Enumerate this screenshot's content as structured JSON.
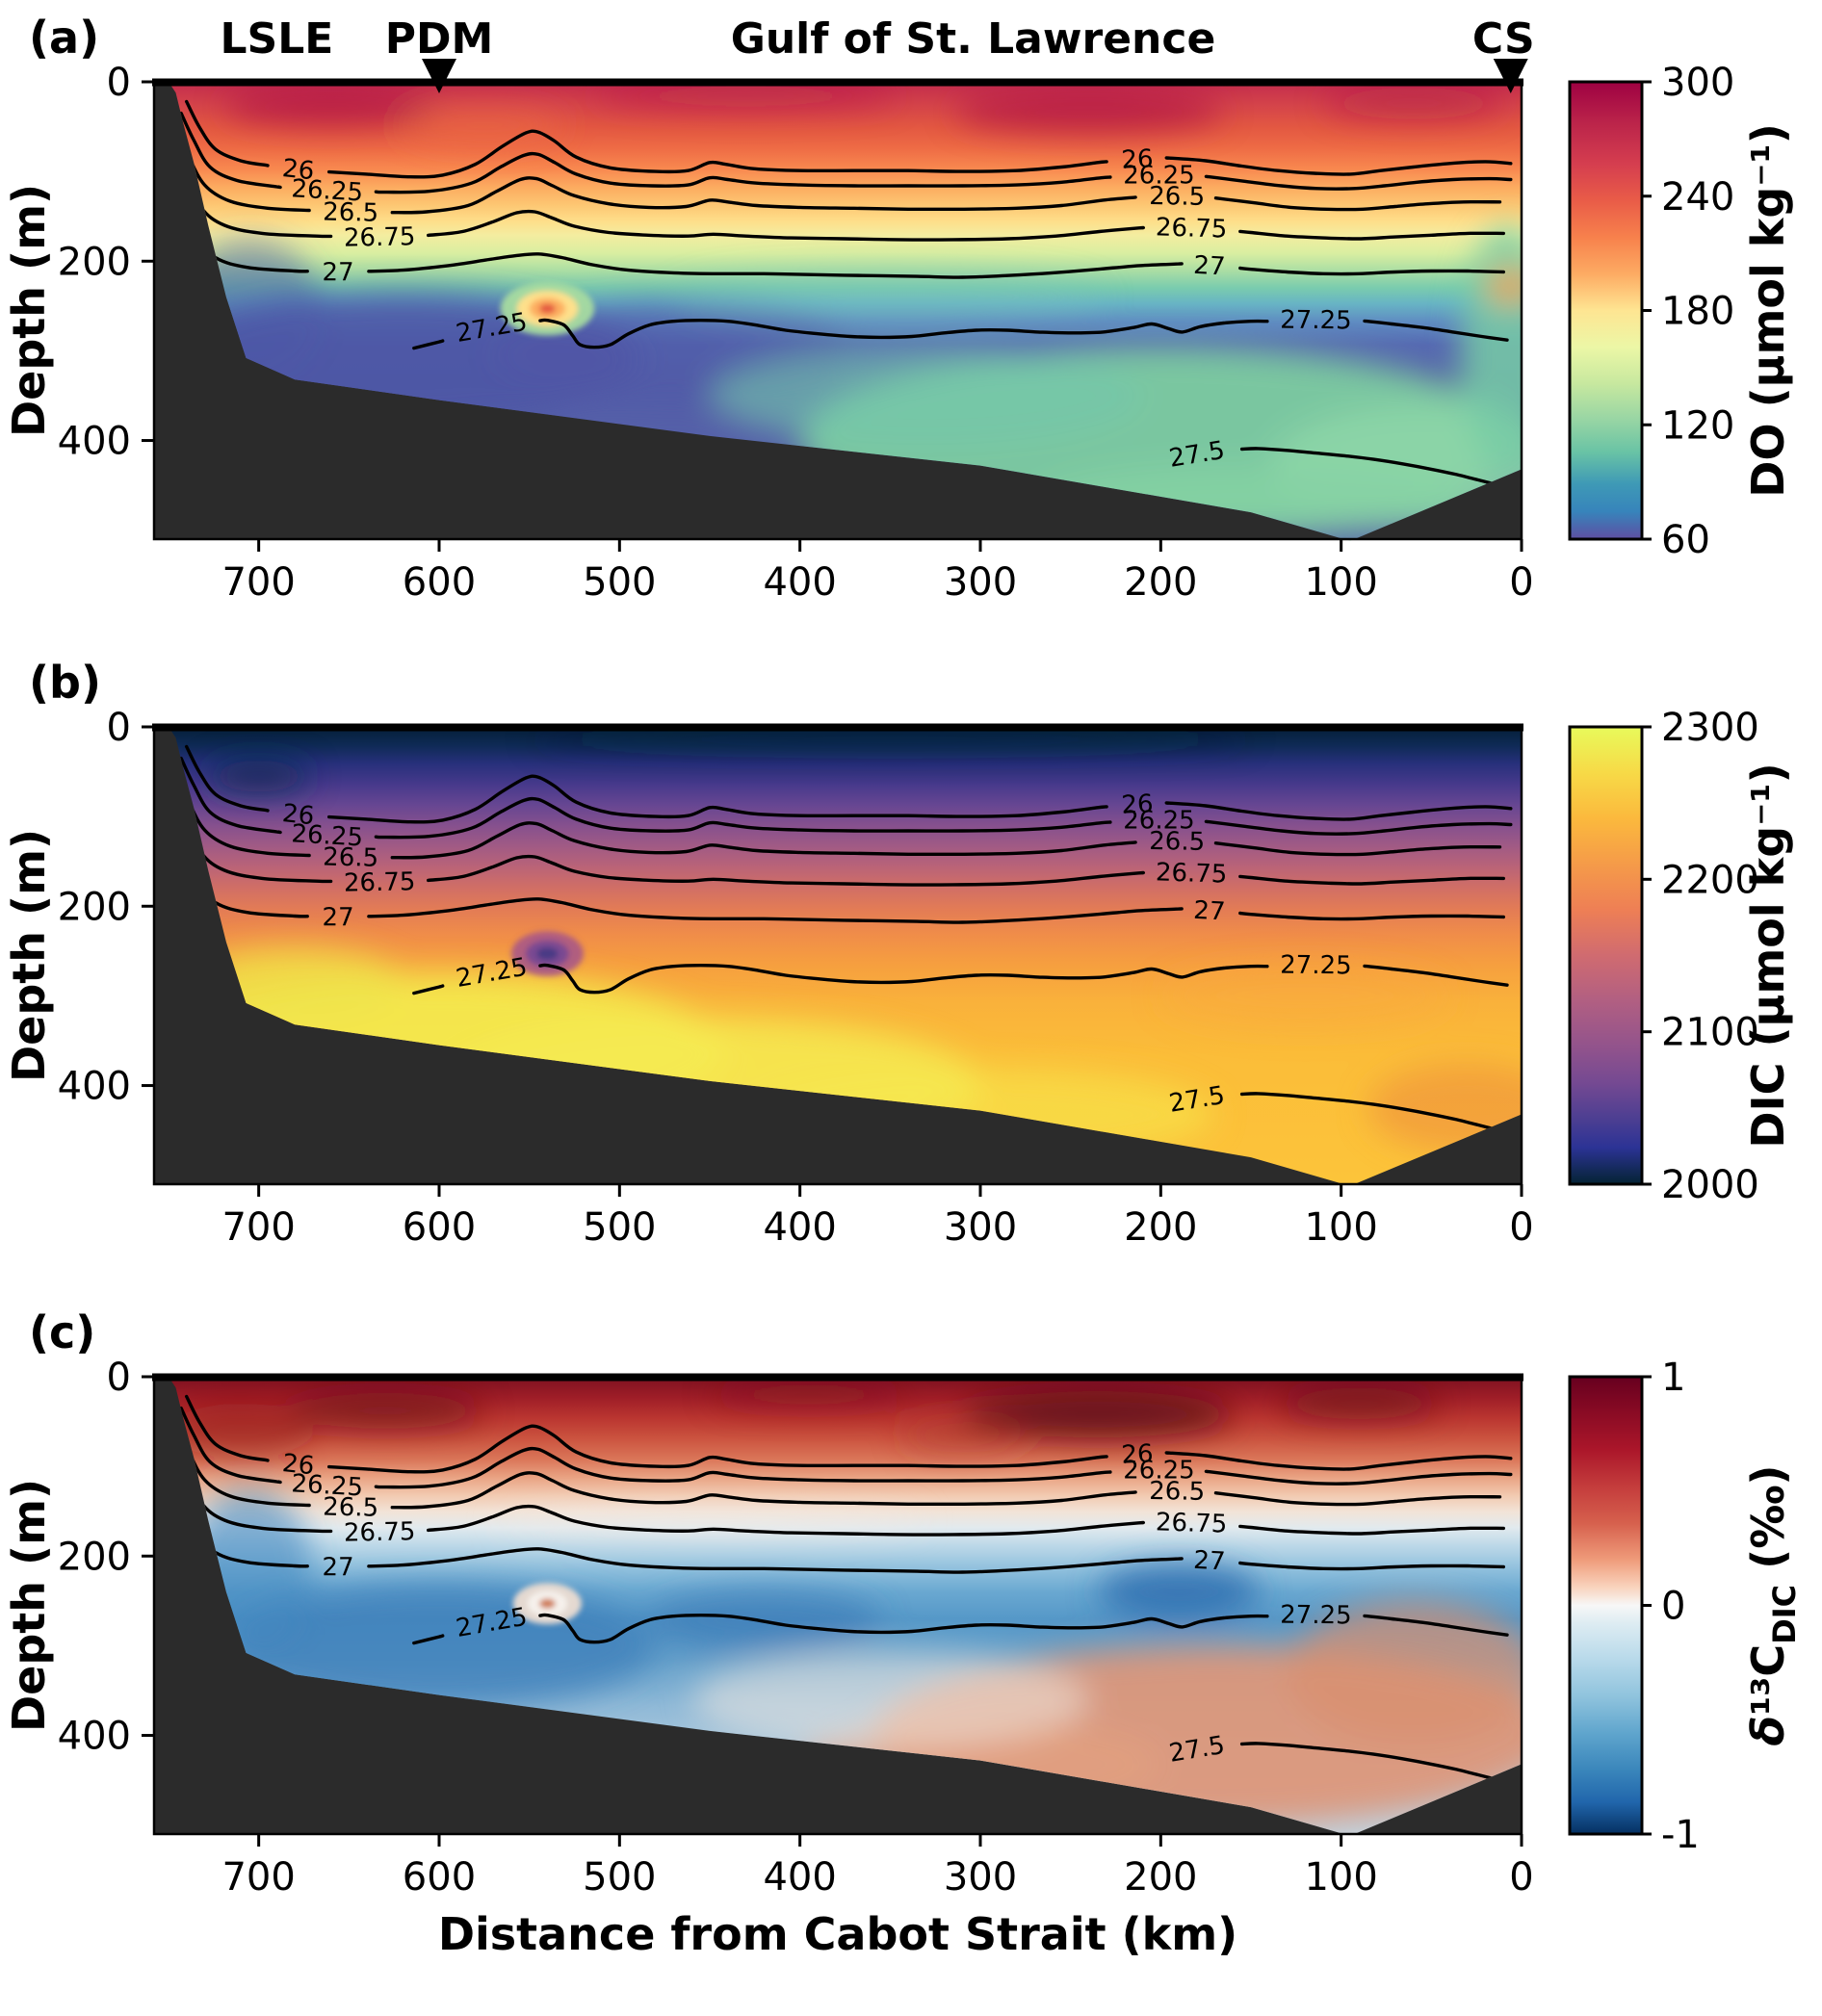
{
  "figure": {
    "panel_letters": [
      "(a)",
      "(b)",
      "(c)"
    ],
    "ylabel": "Depth (m)",
    "xlabel": "Distance from Cabot Strait (km)",
    "x_tick_labels": [
      "700",
      "600",
      "500",
      "400",
      "300",
      "200",
      "100",
      "0"
    ],
    "y_tick_labels": [
      "0",
      "200",
      "400"
    ],
    "contour_labels": [
      "26",
      "26.25",
      "26.5",
      "26.75",
      "27",
      "27.25",
      "27.5"
    ],
    "annotations": {
      "lsle": "LSLE",
      "pdm": "PDM",
      "gulf": "Gulf of St. Lawrence",
      "cs": "CS"
    },
    "colorbars": [
      {
        "ticks": [
          "300",
          "240",
          "180",
          "120",
          "60"
        ],
        "label": {
          "italic": "",
          "pre": "DO (µmol kg⁻¹)",
          "sub": "",
          "post": ""
        }
      },
      {
        "ticks": [
          "2300",
          "2200",
          "2100",
          "2000"
        ],
        "label": {
          "italic": "",
          "pre": "DIC (µmol kg⁻¹)",
          "sub": "",
          "post": ""
        }
      },
      {
        "ticks": [
          "1",
          "0",
          "-1"
        ],
        "label": {
          "italic": "δ",
          "pre": "¹³C",
          "sub": "DIC",
          "post": " (‰)"
        }
      }
    ]
  },
  "chart_data": [
    {
      "type": "heatmap",
      "panel": "a",
      "variable": "Dissolved oxygen (DO)",
      "units": "µmol kg⁻¹",
      "colormap_range": [
        60,
        300
      ],
      "colorbar_ticks": [
        300,
        240,
        180,
        120,
        60
      ],
      "x_axis": {
        "label": "Distance from Cabot Strait (km)",
        "ticks": [
          700,
          600,
          500,
          400,
          300,
          200,
          100,
          0
        ],
        "max_km": 758,
        "note": "distance decreases toward Cabot Strait at right"
      },
      "y_axis": {
        "label": "Depth (m)",
        "ticks": [
          0,
          200,
          400
        ],
        "max_depth_m": 510,
        "positive": "down"
      },
      "markers": [
        {
          "name": "LSLE",
          "km": 690
        },
        {
          "name": "PDM",
          "km": 600
        },
        {
          "name": "CS",
          "km": 6
        }
      ],
      "isopycnal_contour_levels": [
        26,
        26.25,
        26.5,
        26.75,
        27,
        27.25,
        27.5
      ],
      "isopycnal_mid_gulf_depths_m": {
        "26": 100,
        "26.25": 115,
        "26.5": 140,
        "26.75": 175,
        "27": 213,
        "27.25": 277,
        "27.5": 420
      },
      "seafloor_depth_m_vs_km": [
        [
          750,
          0
        ],
        [
          707,
          308
        ],
        [
          600,
          355
        ],
        [
          450,
          395
        ],
        [
          300,
          428
        ],
        [
          150,
          480
        ],
        [
          95,
          510
        ],
        [
          0,
          432
        ]
      ],
      "approx_profile_mid_gulf": {
        "depth_m": [
          0,
          50,
          100,
          150,
          200,
          250,
          300,
          350,
          400,
          450
        ],
        "value": [
          285,
          255,
          200,
          165,
          120,
          80,
          70,
          90,
          110,
          120
        ]
      },
      "features": [
        "surface layer DO ≈ 250–300",
        "oxygen-poor layer ≈ 60–90 at 250–350 m, most intense toward LSLE",
        "high-DO eddy core near 540 km at ≈ 250 m",
        "deep water near Cabot Strait ≈ 110–130"
      ]
    },
    {
      "type": "heatmap",
      "panel": "b",
      "variable": "Dissolved inorganic carbon (DIC)",
      "units": "µmol kg⁻¹",
      "colormap_range": [
        2000,
        2300
      ],
      "colorbar_ticks": [
        2300,
        2200,
        2100,
        2000
      ],
      "x_axis": {
        "label": "Distance from Cabot Strait (km)",
        "ticks": [
          700,
          600,
          500,
          400,
          300,
          200,
          100,
          0
        ],
        "max_km": 758,
        "note": "distance decreases toward Cabot Strait at right"
      },
      "y_axis": {
        "label": "Depth (m)",
        "ticks": [
          0,
          200,
          400
        ],
        "max_depth_m": 510,
        "positive": "down"
      },
      "markers": [
        {
          "name": "LSLE",
          "km": 690
        },
        {
          "name": "PDM",
          "km": 600
        },
        {
          "name": "CS",
          "km": 6
        }
      ],
      "isopycnal_contour_levels": [
        26,
        26.25,
        26.5,
        26.75,
        27,
        27.25,
        27.5
      ],
      "seafloor_depth_m_vs_km": [
        [
          750,
          0
        ],
        [
          707,
          308
        ],
        [
          600,
          355
        ],
        [
          450,
          395
        ],
        [
          300,
          428
        ],
        [
          150,
          480
        ],
        [
          95,
          510
        ],
        [
          0,
          432
        ]
      ],
      "approx_profile_mid_gulf": {
        "depth_m": [
          0,
          50,
          100,
          150,
          200,
          250,
          300,
          350,
          400,
          450
        ],
        "value": [
          2015,
          2090,
          2145,
          2185,
          2215,
          2245,
          2265,
          2280,
          2285,
          2285
        ]
      },
      "features": [
        "low-DIC surface layer ≈ 2000–2050",
        "DIC increases monotonically with depth",
        "deep waters toward LSLE ≈ 2280–2300",
        "low-DIC eddy core near 540 km at ≈ 250 m"
      ]
    },
    {
      "type": "heatmap",
      "panel": "c",
      "variable": "δ13C of DIC",
      "units": "‰",
      "colormap_range": [
        -1,
        1
      ],
      "colorbar_ticks": [
        1,
        0,
        -1
      ],
      "x_axis": {
        "label": "Distance from Cabot Strait (km)",
        "ticks": [
          700,
          600,
          500,
          400,
          300,
          200,
          100,
          0
        ],
        "max_km": 758,
        "note": "distance decreases toward Cabot Strait at right"
      },
      "y_axis": {
        "label": "Depth (m)",
        "ticks": [
          0,
          200,
          400
        ],
        "max_depth_m": 510,
        "positive": "down"
      },
      "markers": [
        {
          "name": "LSLE",
          "km": 690
        },
        {
          "name": "PDM",
          "km": 600
        },
        {
          "name": "CS",
          "km": 6
        }
      ],
      "isopycnal_contour_levels": [
        26,
        26.25,
        26.5,
        26.75,
        27,
        27.25,
        27.5
      ],
      "seafloor_depth_m_vs_km": [
        [
          750,
          0
        ],
        [
          707,
          308
        ],
        [
          600,
          355
        ],
        [
          450,
          395
        ],
        [
          300,
          428
        ],
        [
          150,
          480
        ],
        [
          95,
          510
        ],
        [
          0,
          432
        ]
      ],
      "approx_profile_mid_gulf": {
        "depth_m": [
          0,
          50,
          100,
          150,
          200,
          250,
          300,
          350,
          400,
          450
        ],
        "value": [
          0.8,
          0.55,
          0.25,
          0.0,
          -0.35,
          -0.5,
          -0.4,
          -0.15,
          0.1,
          0.2
        ]
      },
      "features": [
        "13C-enriched surface layer ≈ +0.5 to +1 ‰",
        "13C-depleted layer ≈ −0.5 ‰ at 200–300 m",
        "deep waters toward Cabot Strait ≈ +0.2 to +0.4 ‰",
        "near-zero eddy core near 540 km at ≈ 250 m"
      ]
    }
  ]
}
